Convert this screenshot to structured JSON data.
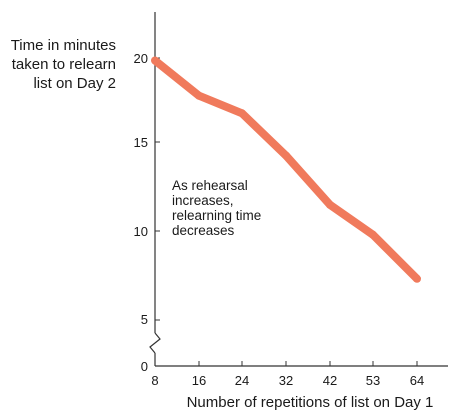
{
  "chart_data": {
    "type": "line",
    "ylabel": [
      "Time in minutes",
      "taken to relearn",
      "list on Day 2"
    ],
    "xlabel": "Number of repetitions of list on Day 1",
    "x": [
      "8",
      "16",
      "24",
      "32",
      "42",
      "53",
      "64"
    ],
    "y_ticks": [
      "0",
      "5",
      "10",
      "15",
      "20"
    ],
    "ylim": [
      0,
      20
    ],
    "y_axis_break": true,
    "grid": false,
    "series": [
      {
        "values": [
          19.8,
          17.8,
          16.8,
          14.4,
          11.6,
          9.9,
          7.4
        ]
      }
    ],
    "annotation": [
      "As rehearsal",
      "increases,",
      "relearning time",
      "decreases"
    ],
    "colors": {
      "line": "#f07a5c",
      "axis": "#333333",
      "text": "#1a1a1a"
    }
  }
}
